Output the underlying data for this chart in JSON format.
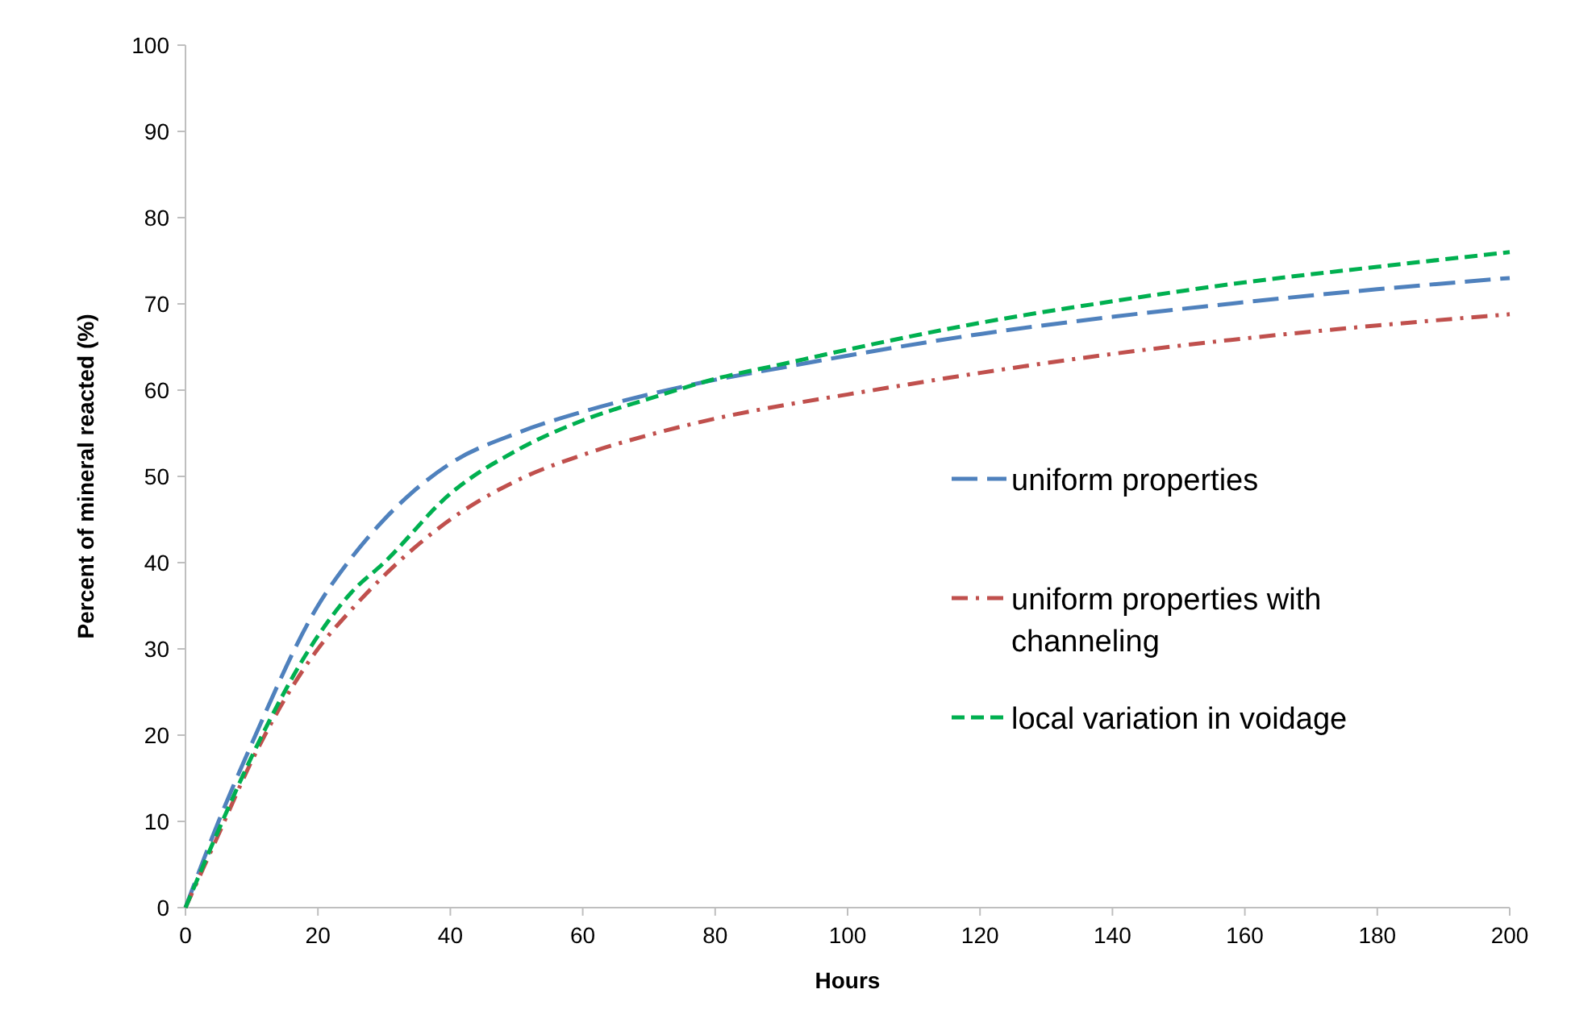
{
  "chart_data": {
    "type": "line",
    "xlabel": "Hours",
    "ylabel": "Percent of mineral reacted (%)",
    "xlim": [
      0,
      200
    ],
    "xticks": [
      0,
      20,
      40,
      60,
      80,
      100,
      120,
      140,
      160,
      180,
      200
    ],
    "ylim": [
      0,
      100
    ],
    "yticks": [
      0,
      10,
      20,
      30,
      40,
      50,
      60,
      70,
      80,
      90,
      100
    ],
    "grid": false,
    "legend": "right",
    "x": [
      0,
      5,
      10,
      20,
      25,
      30,
      40,
      50,
      60,
      70,
      80,
      90,
      100,
      120,
      140,
      160,
      180,
      200
    ],
    "series": [
      {
        "name": "uniform properties",
        "color": "#4f81bd",
        "line_style": "longdash",
        "values": [
          0,
          10,
          19,
          35,
          40.5,
          45,
          51.5,
          55,
          57.5,
          59.5,
          61.2,
          62.6,
          64,
          66.5,
          68.5,
          70.2,
          71.7,
          73
        ]
      },
      {
        "name": "uniform properties with channeling",
        "color": "#c0504d",
        "line_style": "dashdot",
        "values": [
          0,
          8.5,
          17,
          30,
          34.5,
          38.5,
          45,
          49.5,
          52.5,
          54.8,
          56.7,
          58.2,
          59.5,
          62,
          64.2,
          66,
          67.5,
          68.8
        ]
      },
      {
        "name": "local variation in voidage",
        "color": "#00b050",
        "line_style": "dashed",
        "values": [
          0,
          9,
          17.5,
          31.5,
          36.5,
          40,
          48,
          53,
          56.5,
          59,
          61.3,
          63,
          64.7,
          67.8,
          70.3,
          72.5,
          74.3,
          76
        ]
      }
    ]
  }
}
